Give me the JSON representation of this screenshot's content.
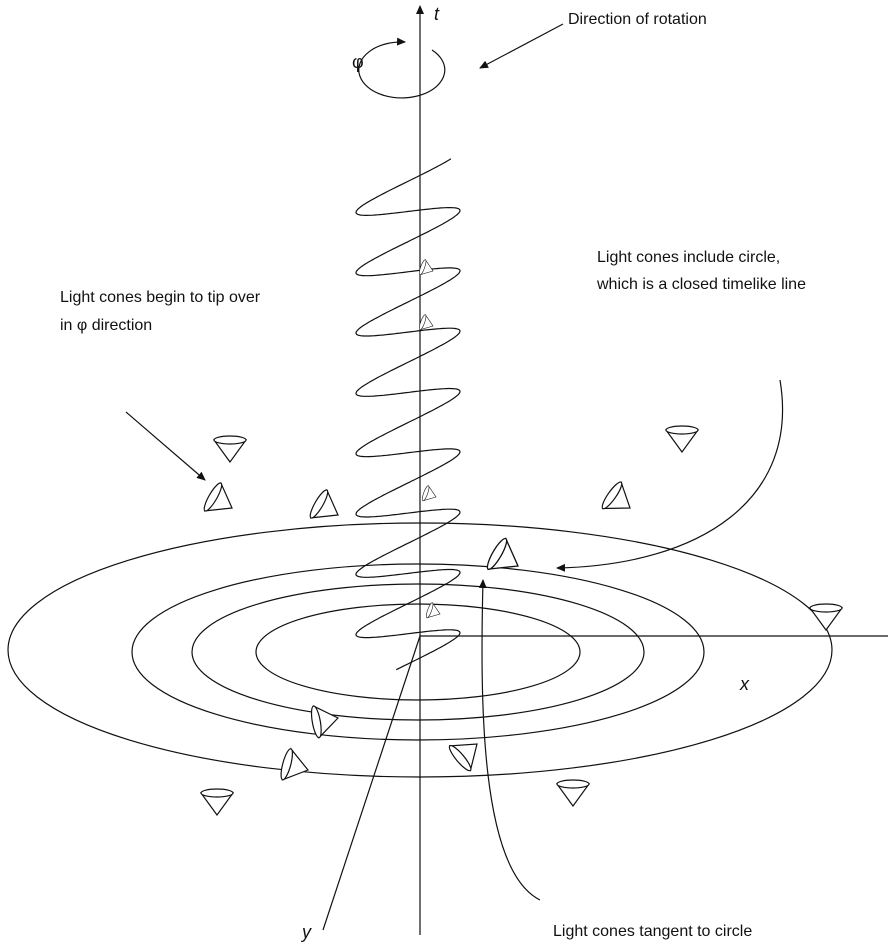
{
  "axes": {
    "t": "t",
    "x": "x",
    "y": "y"
  },
  "labels": {
    "phi": "φ",
    "rotation": "Direction of rotation",
    "tip_over": [
      "Light cones begin to tip over",
      "in φ direction"
    ],
    "include": [
      "Light cones include circle,",
      "which is a closed timelike line"
    ],
    "tangent": "Light cones tangent to circle"
  }
}
